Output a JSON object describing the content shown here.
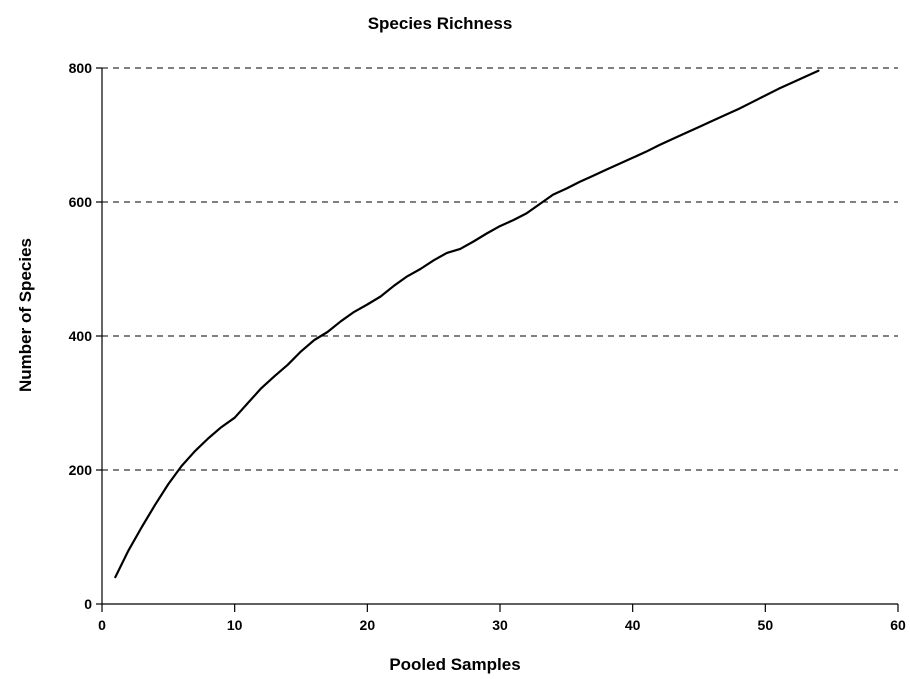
{
  "chart_data": {
    "type": "line",
    "title": "Species Richness",
    "xlabel": "Pooled Samples",
    "ylabel": "Number of Species",
    "xlim": [
      0,
      60
    ],
    "ylim": [
      0,
      800
    ],
    "x_ticks": [
      0,
      10,
      20,
      30,
      40,
      50,
      60
    ],
    "y_ticks": [
      0,
      200,
      400,
      600,
      800
    ],
    "grid": "horizontal dashed",
    "line_color": "#000000",
    "series": [
      {
        "x": [
          1,
          2,
          3,
          4,
          5,
          6,
          7,
          8,
          9,
          10,
          11,
          12,
          13,
          14,
          15,
          16,
          17,
          18,
          19,
          20,
          21,
          22,
          23,
          24,
          25,
          26,
          27,
          28,
          29,
          30,
          31,
          32,
          33,
          34,
          35,
          36,
          37,
          38,
          39,
          40,
          41,
          42,
          43,
          44,
          45,
          46,
          47,
          48,
          49,
          50,
          51,
          52,
          53,
          54
        ],
        "values": [
          40,
          80,
          115,
          148,
          179,
          206,
          228,
          247,
          264,
          278,
          300,
          322,
          340,
          357,
          377,
          394,
          406,
          422,
          436,
          447,
          459,
          475,
          489,
          500,
          513,
          524,
          530,
          541,
          553,
          564,
          573,
          583,
          597,
          611,
          620,
          630,
          639,
          648,
          657,
          666,
          675,
          685,
          694,
          703,
          712,
          721,
          730,
          739,
          749,
          759,
          769,
          778,
          787,
          796
        ]
      }
    ]
  }
}
